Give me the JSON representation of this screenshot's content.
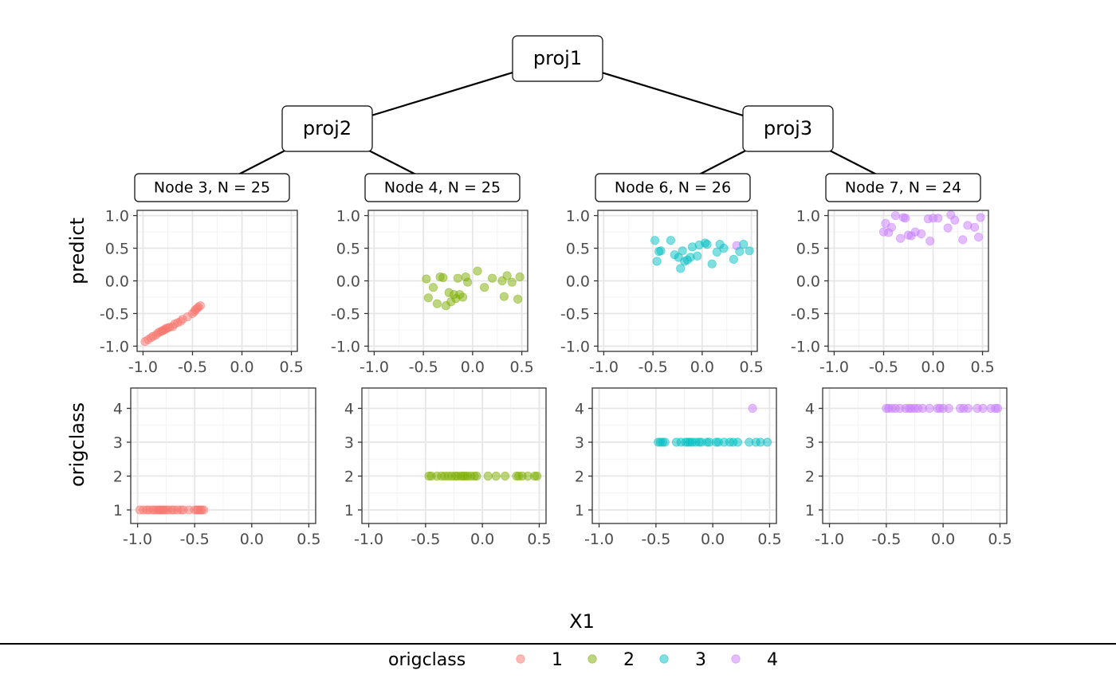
{
  "tree": {
    "internal_nodes": [
      {
        "id": "proj1",
        "label": "proj1"
      },
      {
        "id": "proj2",
        "label": "proj2"
      },
      {
        "id": "proj3",
        "label": "proj3"
      }
    ],
    "leaf_nodes": [
      {
        "id": "n3",
        "label": "Node 3, N = 25"
      },
      {
        "id": "n4",
        "label": "Node 4, N = 25"
      },
      {
        "id": "n6",
        "label": "Node 6, N = 26"
      },
      {
        "id": "n7",
        "label": "Node 7, N = 24"
      }
    ],
    "edges": [
      [
        "proj1",
        "proj2"
      ],
      [
        "proj1",
        "proj3"
      ],
      [
        "proj2",
        "n3"
      ],
      [
        "proj2",
        "n4"
      ],
      [
        "proj3",
        "n6"
      ],
      [
        "proj3",
        "n7"
      ]
    ]
  },
  "chart_data": {
    "type": "scatter",
    "xlabel": "X1",
    "row_ylabels": [
      "predict",
      "origclass"
    ],
    "xlim": [
      -1.0,
      0.5
    ],
    "x_ticks": [
      "-1.0",
      "-0.5",
      "0.0",
      "0.5"
    ],
    "x_tick_values": [
      -1.0,
      -0.5,
      0.0,
      0.5
    ],
    "predict_ylim": [
      -1.0,
      1.0
    ],
    "predict_y_ticks": [
      "-1.0",
      "-0.5",
      "0.0",
      "0.5",
      "1.0"
    ],
    "predict_y_tick_values": [
      -1.0,
      -0.5,
      0.0,
      0.5,
      1.0
    ],
    "origclass_ylim": [
      0.6,
      4.6
    ],
    "origclass_y_ticks": [
      "1",
      "2",
      "3",
      "4"
    ],
    "origclass_y_tick_values": [
      1,
      2,
      3,
      4
    ],
    "grid": true,
    "legend": {
      "title": "origclass",
      "position": "bottom",
      "items": [
        {
          "label": "1",
          "color": "#F8766D"
        },
        {
          "label": "2",
          "color": "#7CAE00"
        },
        {
          "label": "3",
          "color": "#00BFC4"
        },
        {
          "label": "4",
          "color": "#C77CFF"
        }
      ]
    },
    "panels": [
      {
        "node": "Node 3, N = 25",
        "color": "#F8766D",
        "predict": {
          "x": [
            -0.98,
            -0.95,
            -0.92,
            -0.9,
            -0.87,
            -0.85,
            -0.83,
            -0.81,
            -0.8,
            -0.78,
            -0.77,
            -0.75,
            -0.73,
            -0.7,
            -0.68,
            -0.65,
            -0.62,
            -0.6,
            -0.55,
            -0.5,
            -0.48,
            -0.47,
            -0.45,
            -0.44,
            -0.42
          ],
          "y": [
            -0.93,
            -0.9,
            -0.87,
            -0.85,
            -0.83,
            -0.8,
            -0.78,
            -0.77,
            -0.76,
            -0.75,
            -0.73,
            -0.72,
            -0.71,
            -0.7,
            -0.66,
            -0.64,
            -0.62,
            -0.59,
            -0.55,
            -0.5,
            -0.47,
            -0.44,
            -0.42,
            -0.4,
            -0.38
          ]
        },
        "origclass": {
          "x": [
            -0.98,
            -0.95,
            -0.92,
            -0.9,
            -0.87,
            -0.85,
            -0.83,
            -0.81,
            -0.8,
            -0.78,
            -0.77,
            -0.75,
            -0.73,
            -0.7,
            -0.68,
            -0.65,
            -0.62,
            -0.6,
            -0.55,
            -0.5,
            -0.48,
            -0.47,
            -0.45,
            -0.44,
            -0.42
          ],
          "y": [
            1,
            1,
            1,
            1,
            1,
            1,
            1,
            1,
            1,
            1,
            1,
            1,
            1,
            1,
            1,
            1,
            1,
            1,
            1,
            1,
            1,
            1,
            1,
            1,
            1
          ]
        }
      },
      {
        "node": "Node 4, N = 25",
        "color": "#7CAE00",
        "predict": {
          "x": [
            -0.47,
            -0.45,
            -0.4,
            -0.36,
            -0.33,
            -0.3,
            -0.27,
            -0.24,
            -0.22,
            -0.19,
            -0.17,
            -0.15,
            -0.13,
            -0.1,
            -0.07,
            -0.05,
            0.05,
            0.12,
            0.2,
            0.3,
            0.32,
            0.35,
            0.4,
            0.46,
            0.48
          ],
          "y": [
            0.03,
            -0.26,
            -0.1,
            -0.35,
            0.06,
            0.05,
            -0.38,
            -0.18,
            -0.32,
            -0.21,
            -0.27,
            0.04,
            -0.21,
            -0.25,
            0.06,
            -0.02,
            0.15,
            -0.1,
            0.04,
            0.0,
            -0.24,
            0.08,
            -0.02,
            -0.28,
            0.06
          ]
        },
        "origclass": {
          "x": [
            -0.47,
            -0.45,
            -0.4,
            -0.36,
            -0.33,
            -0.3,
            -0.27,
            -0.24,
            -0.22,
            -0.19,
            -0.17,
            -0.15,
            -0.13,
            -0.1,
            -0.07,
            -0.05,
            0.05,
            0.12,
            0.2,
            0.3,
            0.32,
            0.35,
            0.4,
            0.46,
            0.48
          ],
          "y": [
            2,
            2,
            2,
            2,
            2,
            2,
            2,
            2,
            2,
            2,
            2,
            2,
            2,
            2,
            2,
            2,
            2,
            2,
            2,
            2,
            2,
            2,
            2,
            2,
            2
          ]
        }
      },
      {
        "node": "Node 6, N = 26",
        "color": "#00BFC4",
        "predict": {
          "x": [
            -0.48,
            -0.46,
            -0.44,
            -0.42,
            -0.32,
            -0.28,
            -0.24,
            -0.22,
            -0.2,
            -0.18,
            -0.15,
            -0.12,
            -0.1,
            -0.05,
            -0.03,
            0.03,
            0.05,
            0.1,
            0.15,
            0.18,
            0.22,
            0.32,
            0.35,
            0.38,
            0.42,
            0.48
          ],
          "y": [
            0.62,
            0.3,
            0.45,
            0.46,
            0.62,
            0.4,
            0.36,
            0.19,
            0.46,
            0.3,
            0.32,
            0.36,
            0.52,
            0.38,
            0.55,
            0.58,
            0.56,
            0.26,
            0.44,
            0.56,
            0.5,
            0.33,
            0.54,
            0.45,
            0.56,
            0.46
          ]
        },
        "origclass": {
          "x": [
            -0.48,
            -0.46,
            -0.44,
            -0.42,
            -0.32,
            -0.28,
            -0.24,
            -0.22,
            -0.2,
            -0.18,
            -0.15,
            -0.12,
            -0.1,
            -0.05,
            -0.03,
            0.03,
            0.05,
            0.1,
            0.15,
            0.18,
            0.22,
            0.32,
            0.35,
            0.38,
            0.42,
            0.48
          ],
          "y": [
            3,
            3,
            3,
            3,
            3,
            3,
            3,
            3,
            3,
            3,
            3,
            3,
            3,
            3,
            3,
            3,
            3,
            3,
            3,
            3,
            3,
            3,
            4,
            3,
            3,
            3
          ]
        },
        "point_colors": [
          "#00BFC4",
          "#00BFC4",
          "#00BFC4",
          "#00BFC4",
          "#00BFC4",
          "#00BFC4",
          "#00BFC4",
          "#00BFC4",
          "#00BFC4",
          "#00BFC4",
          "#00BFC4",
          "#00BFC4",
          "#00BFC4",
          "#00BFC4",
          "#00BFC4",
          "#00BFC4",
          "#00BFC4",
          "#00BFC4",
          "#00BFC4",
          "#00BFC4",
          "#00BFC4",
          "#00BFC4",
          "#C77CFF",
          "#00BFC4",
          "#00BFC4",
          "#00BFC4"
        ]
      },
      {
        "node": "Node 7, N = 24",
        "color": "#C77CFF",
        "predict": {
          "x": [
            -0.5,
            -0.48,
            -0.45,
            -0.42,
            -0.38,
            -0.33,
            -0.3,
            -0.28,
            -0.25,
            -0.22,
            -0.18,
            -0.12,
            -0.05,
            -0.03,
            0.0,
            0.05,
            0.15,
            0.18,
            0.22,
            0.3,
            0.35,
            0.42,
            0.46,
            0.48
          ],
          "y": [
            0.75,
            0.88,
            0.74,
            0.82,
            1.0,
            0.65,
            0.97,
            0.96,
            0.7,
            0.69,
            0.75,
            0.72,
            0.95,
            0.61,
            0.96,
            0.96,
            0.81,
            1.01,
            0.93,
            0.63,
            0.85,
            0.82,
            0.67,
            0.97
          ]
        },
        "origclass": {
          "x": [
            -0.5,
            -0.48,
            -0.45,
            -0.42,
            -0.38,
            -0.33,
            -0.3,
            -0.28,
            -0.25,
            -0.22,
            -0.18,
            -0.12,
            -0.05,
            -0.03,
            0.0,
            0.05,
            0.15,
            0.18,
            0.22,
            0.3,
            0.35,
            0.42,
            0.46,
            0.48
          ],
          "y": [
            4,
            4,
            4,
            4,
            4,
            4,
            4,
            4,
            4,
            4,
            4,
            4,
            4,
            4,
            4,
            4,
            4,
            4,
            4,
            4,
            4,
            4,
            4,
            4
          ]
        }
      }
    ]
  }
}
